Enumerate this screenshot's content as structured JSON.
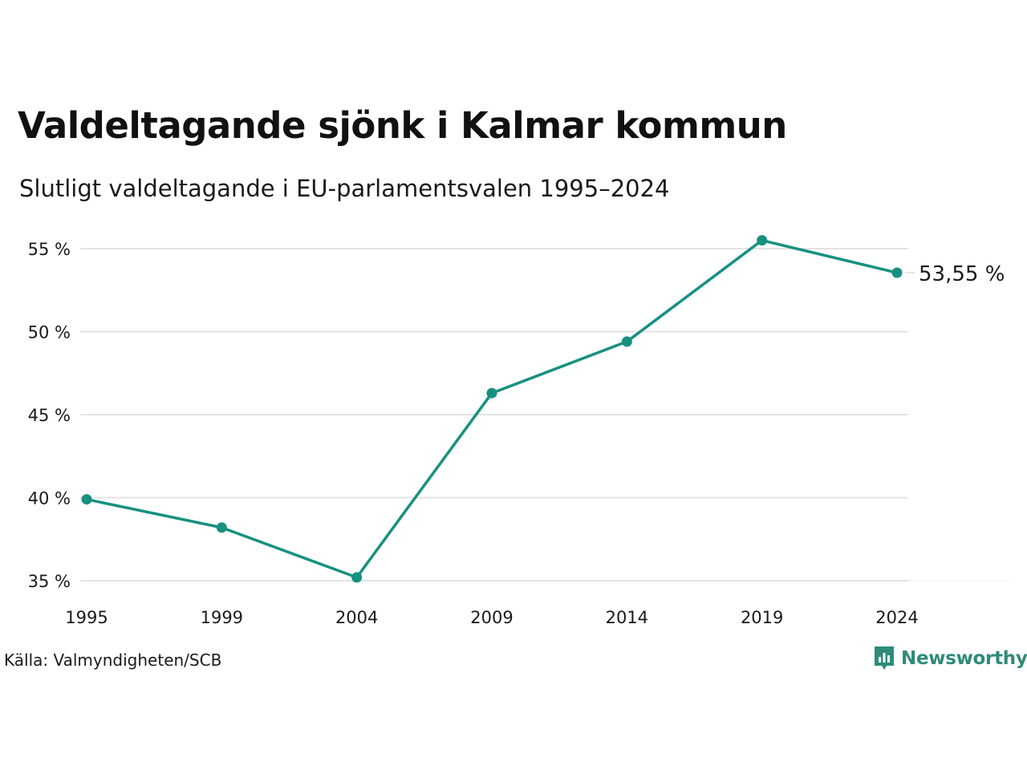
{
  "title": "Valdeltagande sjönk i Kalmar kommun",
  "subtitle": "Slutligt valdeltagande i EU-parlamentsvalen 1995–2024",
  "source": "Källa: Valmyndigheten/SCB",
  "brand": {
    "label": "Newsworthy",
    "icon": "newsworthy-logo-icon",
    "color": "#2e8b79"
  },
  "colors": {
    "line": "#17917f",
    "grid": "#e3e3e3",
    "text": "#1a1a1a"
  },
  "chart_data": {
    "type": "line",
    "x": [
      "1995",
      "1999",
      "2004",
      "2009",
      "2014",
      "2019",
      "2024"
    ],
    "series": [
      {
        "values": [
          39.9,
          38.2,
          35.2,
          46.3,
          49.4,
          55.5,
          53.55
        ]
      }
    ],
    "yticks": [
      35,
      40,
      45,
      50,
      55
    ],
    "ytick_labels": [
      "35 %",
      "40 %",
      "45 %",
      "50 %",
      "55 %"
    ],
    "ylim": [
      35,
      55
    ],
    "end_label": "53,55 %",
    "grid": true,
    "legend": false
  }
}
